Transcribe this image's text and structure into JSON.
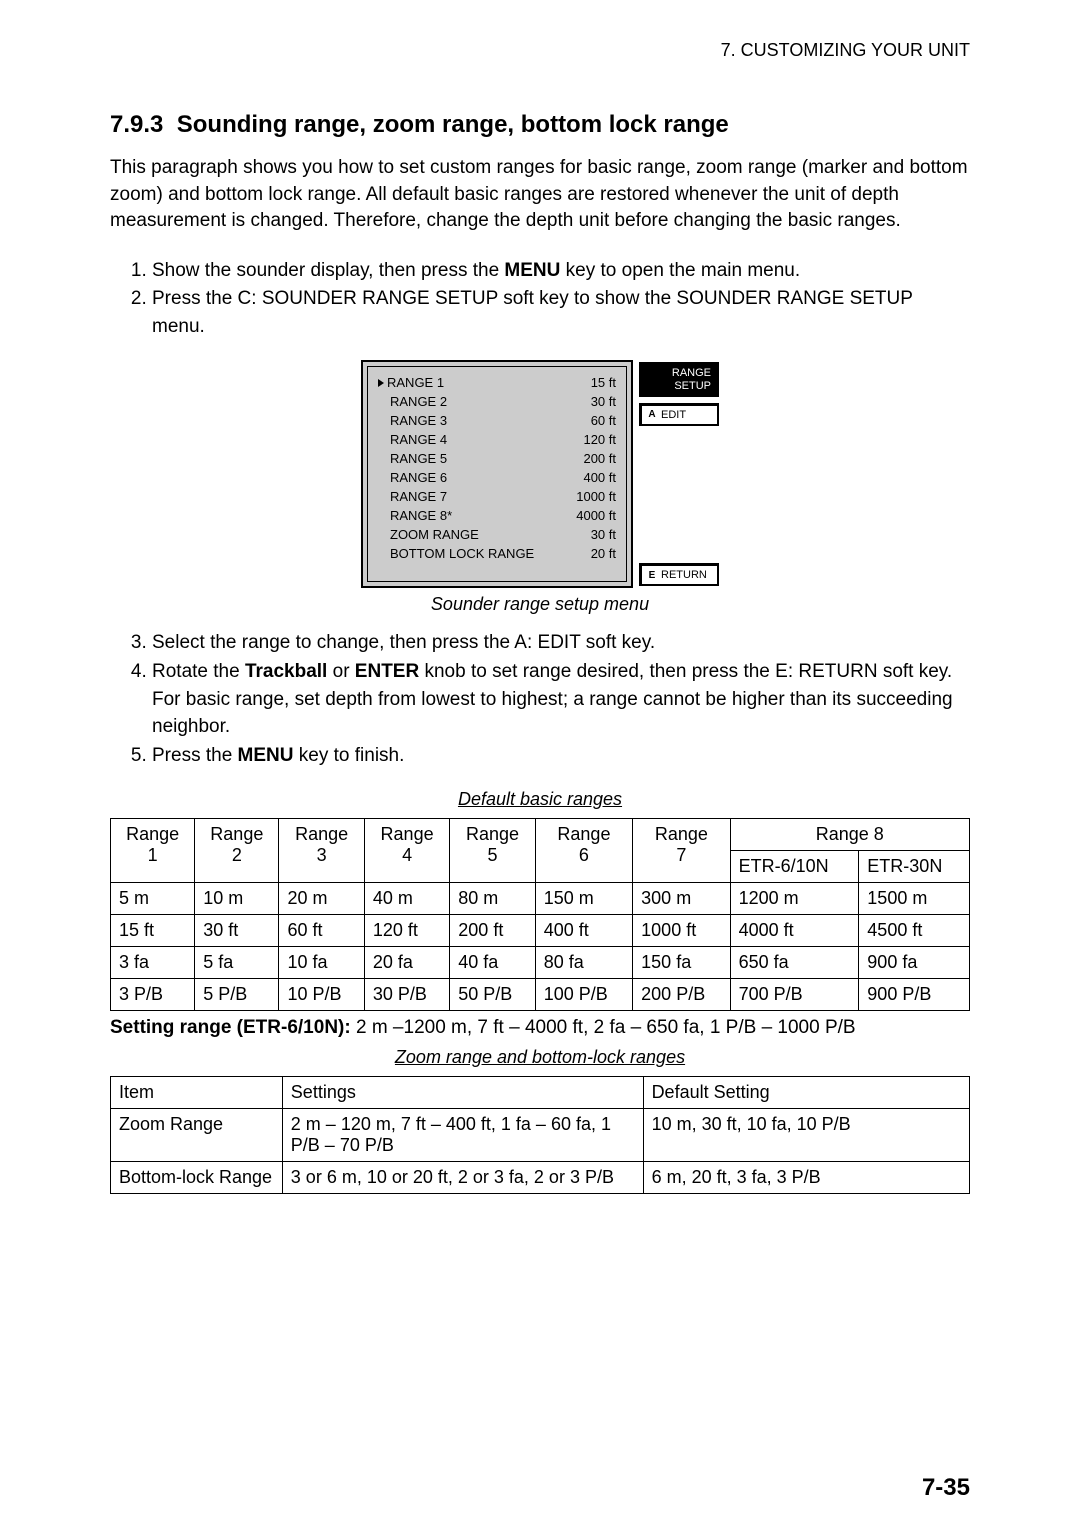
{
  "header": "7. CUSTOMIZING YOUR UNIT",
  "section_number": "7.9.3",
  "section_title": "Sounding range, zoom range, bottom lock range",
  "intro": "This paragraph shows you how to set custom ranges for basic range, zoom range (marker and bottom zoom) and bottom lock range. All default basic ranges are restored whenever the unit of depth measurement is changed. Therefore, change the depth unit before changing the basic ranges.",
  "steps_top": [
    {
      "pre": "Show the sounder display, then press the ",
      "b": "MENU",
      "post": " key to open the main menu."
    },
    {
      "pre": "Press the C: SOUNDER RANGE SETUP soft key to show the SOUNDER RANGE SETUP menu.",
      "b": "",
      "post": ""
    }
  ],
  "menu": {
    "rows": [
      {
        "label": "RANGE 1",
        "value": "15 ft",
        "sel": true
      },
      {
        "label": "RANGE 2",
        "value": "30 ft",
        "sel": false
      },
      {
        "label": "RANGE 3",
        "value": "60 ft",
        "sel": false
      },
      {
        "label": "RANGE 4",
        "value": "120 ft",
        "sel": false
      },
      {
        "label": "RANGE 5",
        "value": "200 ft",
        "sel": false
      },
      {
        "label": "RANGE 6",
        "value": "400 ft",
        "sel": false
      },
      {
        "label": "RANGE 7",
        "value": "1000 ft",
        "sel": false
      },
      {
        "label": "RANGE 8*",
        "value": "4000 ft",
        "sel": false
      },
      {
        "label": "ZOOM RANGE",
        "value": "30 ft",
        "sel": false
      },
      {
        "label": "BOTTOM LOCK RANGE",
        "value": "20 ft",
        "sel": false
      }
    ],
    "softkeys": {
      "title_line1": "RANGE",
      "title_line2": "SETUP",
      "edit_key": "A",
      "edit_label": "EDIT",
      "return_key": "E",
      "return_label": "RETURN"
    }
  },
  "caption_menu": "Sounder range setup menu",
  "steps_bottom": [
    {
      "text": "Select the range to change, then press the A: EDIT soft key."
    },
    {
      "pre": "Rotate the ",
      "b1": "Trackball",
      "mid": " or ",
      "b2": "ENTER",
      "post": " knob to set range desired, then press the E: RETURN soft key. For basic range, set depth from lowest to highest; a range cannot be higher than its succeeding neighbor."
    },
    {
      "pre": "Press the ",
      "b": "MENU",
      "post": " key to finish."
    }
  ],
  "caption_t1": "Default basic ranges",
  "table1": {
    "head_top": [
      "Range 1",
      "Range 2",
      "Range 3",
      "Range 4",
      "Range 5",
      "Range 6",
      "Range 7",
      "Range 8"
    ],
    "head_sub": [
      "ETR-6/10N",
      "ETR-30N"
    ],
    "rows": [
      [
        "5 m",
        "10 m",
        "20 m",
        "40 m",
        "80 m",
        "150 m",
        "300 m",
        "1200 m",
        "1500 m"
      ],
      [
        "15 ft",
        "30 ft",
        "60 ft",
        "120 ft",
        "200 ft",
        "400 ft",
        "1000 ft",
        "4000 ft",
        "4500 ft"
      ],
      [
        "3 fa",
        "5 fa",
        "10 fa",
        "20 fa",
        "40 fa",
        "80 fa",
        "150 fa",
        "650 fa",
        "900 fa"
      ],
      [
        "3 P/B",
        "5 P/B",
        "10 P/B",
        "30 P/B",
        "50 P/B",
        "100 P/B",
        "200 P/B",
        "700 P/B",
        "900 P/B"
      ]
    ]
  },
  "setting_note_bold": "Setting range (ETR-6/10N):",
  "setting_note_rest": " 2 m –1200 m, 7 ft – 4000 ft, 2 fa – 650 fa, 1 P/B – 1000 P/B",
  "caption_t2": "Zoom range and bottom-lock ranges",
  "table2": {
    "head": [
      "Item",
      "Settings",
      "Default Setting"
    ],
    "rows": [
      [
        "Zoom Range",
        "2 m – 120 m, 7 ft – 400 ft, 1 fa – 60 fa, 1 P/B – 70 P/B",
        "10 m, 30 ft, 10 fa, 10 P/B"
      ],
      [
        "Bottom-lock Range",
        "3 or 6 m, 10 or 20 ft, 2 or 3 fa, 2 or 3 P/B",
        "6 m, 20 ft, 3 fa, 3 P/B"
      ]
    ]
  },
  "page_num": "7-35"
}
